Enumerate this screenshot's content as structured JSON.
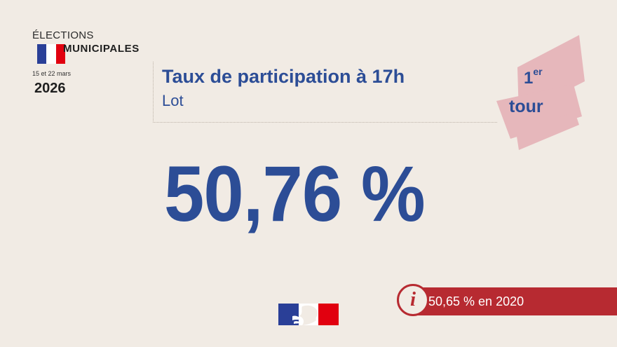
{
  "colors": {
    "background": "#f1ebe4",
    "primary_blue": "#2c4d96",
    "accent_red": "#b72a31",
    "badge_pink": "#e6b7bb",
    "flag_blue": "#2a3f97",
    "flag_white": "#ffffff",
    "flag_red": "#e1000f"
  },
  "logo": {
    "elections": "ÉLECTIONS",
    "municipales": "MUNICIPALES",
    "dates": "15 et 22 mars",
    "year": "2026"
  },
  "header": {
    "title": "Taux de participation à 17h",
    "subtitle": "Lot"
  },
  "tour_badge": {
    "number": "1",
    "superscript": "er",
    "word": "tour"
  },
  "main": {
    "value": "50,76 %"
  },
  "info": {
    "icon": "info-icon",
    "glyph": "i",
    "text": "50,65 % en 2020"
  },
  "footer": {
    "logo_icon": "marianne-logo-icon"
  }
}
